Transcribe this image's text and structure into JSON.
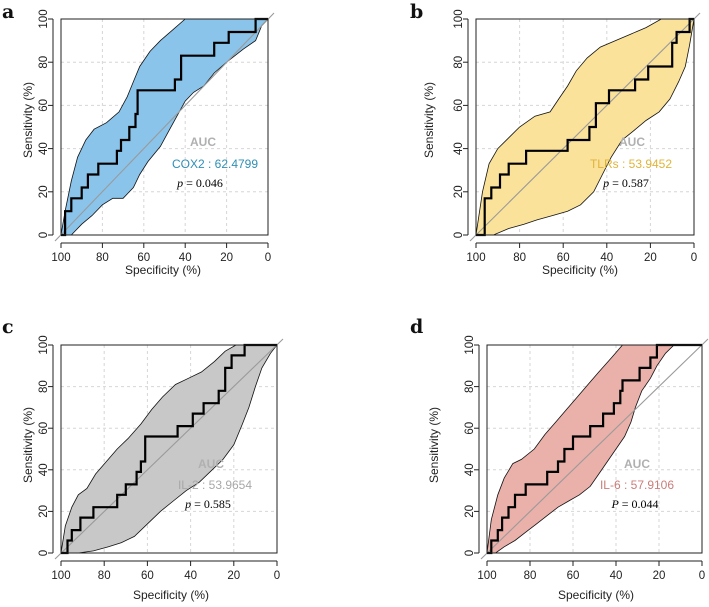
{
  "chart_data": [
    {
      "panel": "a",
      "type": "line",
      "subtype": "roc",
      "xlabel": "Specificity (%)",
      "ylabel": "Sensitivity (%)",
      "xlim": [
        100,
        0
      ],
      "ylim": [
        0,
        100
      ],
      "xticks": [
        "100",
        "80",
        "60",
        "40",
        "20",
        "0"
      ],
      "yticks": [
        "0",
        "20",
        "40",
        "60",
        "80",
        "100"
      ],
      "grid": true,
      "auc_title": "AUC",
      "auc_label": "COX2 : 62.4799",
      "p_prefix": "p",
      "p_rest": " = 0.046",
      "fill_color": "#8bc4ea",
      "label_color": "#2e8fb5",
      "roc": [
        [
          100,
          0
        ],
        [
          98,
          0
        ],
        [
          98,
          11
        ],
        [
          95,
          11
        ],
        [
          95,
          17
        ],
        [
          90,
          17
        ],
        [
          90,
          22
        ],
        [
          87,
          22
        ],
        [
          87,
          28
        ],
        [
          82,
          28
        ],
        [
          82,
          33
        ],
        [
          73,
          33
        ],
        [
          73,
          39
        ],
        [
          71,
          39
        ],
        [
          71,
          44
        ],
        [
          67,
          44
        ],
        [
          67,
          50
        ],
        [
          64,
          50
        ],
        [
          64,
          56
        ],
        [
          63,
          56
        ],
        [
          63,
          67
        ],
        [
          45,
          67
        ],
        [
          45,
          72
        ],
        [
          42,
          72
        ],
        [
          42,
          83
        ],
        [
          26,
          83
        ],
        [
          26,
          89
        ],
        [
          19,
          89
        ],
        [
          19,
          94
        ],
        [
          6,
          94
        ],
        [
          6,
          100
        ],
        [
          0,
          100
        ]
      ],
      "ci_upper": [
        [
          100,
          0
        ],
        [
          98,
          11
        ],
        [
          95,
          25
        ],
        [
          92,
          36
        ],
        [
          88,
          44
        ],
        [
          84,
          49
        ],
        [
          78,
          52
        ],
        [
          72,
          57
        ],
        [
          68,
          64
        ],
        [
          65,
          71
        ],
        [
          62,
          78
        ],
        [
          57,
          85
        ],
        [
          52,
          90
        ],
        [
          46,
          95
        ],
        [
          40,
          100
        ],
        [
          0,
          100
        ]
      ],
      "ci_lower": [
        [
          100,
          0
        ],
        [
          95,
          0
        ],
        [
          90,
          5
        ],
        [
          85,
          9
        ],
        [
          80,
          14
        ],
        [
          75,
          17
        ],
        [
          70,
          17
        ],
        [
          65,
          22
        ],
        [
          62,
          28
        ],
        [
          58,
          34
        ],
        [
          52,
          41
        ],
        [
          48,
          48
        ],
        [
          44,
          55
        ],
        [
          40,
          62
        ],
        [
          36,
          66
        ],
        [
          31,
          69
        ],
        [
          26,
          75
        ],
        [
          20,
          80
        ],
        [
          12,
          86
        ],
        [
          6,
          90
        ],
        [
          3,
          97
        ],
        [
          0,
          100
        ]
      ]
    },
    {
      "panel": "b",
      "type": "line",
      "subtype": "roc",
      "xlabel": "Specificity (%)",
      "ylabel": "Sensitivity (%)",
      "xlim": [
        100,
        0
      ],
      "ylim": [
        0,
        100
      ],
      "xticks": [
        "100",
        "80",
        "60",
        "40",
        "20",
        "0"
      ],
      "yticks": [
        "0",
        "20",
        "40",
        "60",
        "80",
        "100"
      ],
      "grid": true,
      "auc_title": "AUC",
      "auc_label": "TLRs : 53.9452",
      "p_prefix": "p",
      "p_rest": " = 0.587",
      "fill_color": "#fbe29b",
      "label_color": "#e0b43a",
      "roc": [
        [
          100,
          0
        ],
        [
          96,
          0
        ],
        [
          96,
          17
        ],
        [
          93,
          17
        ],
        [
          93,
          22
        ],
        [
          89,
          22
        ],
        [
          89,
          28
        ],
        [
          85,
          28
        ],
        [
          85,
          33
        ],
        [
          77,
          33
        ],
        [
          77,
          39
        ],
        [
          58,
          39
        ],
        [
          58,
          44
        ],
        [
          48,
          44
        ],
        [
          48,
          50
        ],
        [
          45,
          50
        ],
        [
          45,
          61
        ],
        [
          39,
          61
        ],
        [
          39,
          67
        ],
        [
          27,
          67
        ],
        [
          27,
          72
        ],
        [
          21,
          72
        ],
        [
          21,
          78
        ],
        [
          10,
          78
        ],
        [
          10,
          89
        ],
        [
          8,
          89
        ],
        [
          8,
          94
        ],
        [
          2,
          94
        ],
        [
          2,
          100
        ],
        [
          0,
          100
        ]
      ],
      "ci_upper": [
        [
          100,
          0
        ],
        [
          97,
          20
        ],
        [
          94,
          33
        ],
        [
          90,
          40
        ],
        [
          85,
          45
        ],
        [
          80,
          50
        ],
        [
          73,
          55
        ],
        [
          66,
          57
        ],
        [
          62,
          63
        ],
        [
          58,
          69
        ],
        [
          54,
          76
        ],
        [
          49,
          82
        ],
        [
          43,
          87
        ],
        [
          36,
          90
        ],
        [
          29,
          93
        ],
        [
          22,
          96
        ],
        [
          15,
          100
        ],
        [
          0,
          100
        ]
      ],
      "ci_lower": [
        [
          100,
          0
        ],
        [
          92,
          0
        ],
        [
          85,
          3
        ],
        [
          78,
          5
        ],
        [
          72,
          7
        ],
        [
          65,
          9
        ],
        [
          58,
          11
        ],
        [
          52,
          14
        ],
        [
          46,
          20
        ],
        [
          42,
          28
        ],
        [
          38,
          36
        ],
        [
          33,
          44
        ],
        [
          28,
          48
        ],
        [
          22,
          53
        ],
        [
          16,
          57
        ],
        [
          11,
          63
        ],
        [
          7,
          71
        ],
        [
          4,
          78
        ],
        [
          2,
          88
        ],
        [
          0,
          100
        ]
      ]
    },
    {
      "panel": "c",
      "type": "line",
      "subtype": "roc",
      "xlabel": "Specificity (%)",
      "ylabel": "Sensitivity (%)",
      "xlim": [
        100,
        0
      ],
      "ylim": [
        0,
        100
      ],
      "xticks": [
        "100",
        "80",
        "60",
        "40",
        "20",
        "0"
      ],
      "yticks": [
        "0",
        "20",
        "40",
        "60",
        "80",
        "100"
      ],
      "grid": true,
      "auc_title": "AUC",
      "auc_label": "IL-2 : 53.9654",
      "p_prefix": "p",
      "p_rest": " = 0.585",
      "fill_color": "#c8c8c8",
      "label_color": "#a8a8a8",
      "roc": [
        [
          100,
          0
        ],
        [
          97,
          0
        ],
        [
          97,
          6
        ],
        [
          95,
          6
        ],
        [
          95,
          11
        ],
        [
          91,
          11
        ],
        [
          91,
          17
        ],
        [
          85,
          17
        ],
        [
          85,
          22
        ],
        [
          74,
          22
        ],
        [
          74,
          28
        ],
        [
          70,
          28
        ],
        [
          70,
          33
        ],
        [
          65,
          33
        ],
        [
          65,
          39
        ],
        [
          63,
          39
        ],
        [
          63,
          44
        ],
        [
          61,
          44
        ],
        [
          61,
          56
        ],
        [
          46,
          56
        ],
        [
          46,
          61
        ],
        [
          39,
          61
        ],
        [
          39,
          67
        ],
        [
          34,
          67
        ],
        [
          34,
          72
        ],
        [
          27,
          72
        ],
        [
          27,
          78
        ],
        [
          24,
          78
        ],
        [
          24,
          89
        ],
        [
          21,
          89
        ],
        [
          21,
          95
        ],
        [
          15,
          95
        ],
        [
          15,
          100
        ],
        [
          0,
          100
        ]
      ],
      "ci_upper": [
        [
          100,
          0
        ],
        [
          98,
          13
        ],
        [
          95,
          22
        ],
        [
          92,
          28
        ],
        [
          88,
          31
        ],
        [
          84,
          38
        ],
        [
          79,
          44
        ],
        [
          74,
          50
        ],
        [
          69,
          55
        ],
        [
          63,
          62
        ],
        [
          58,
          69
        ],
        [
          53,
          75
        ],
        [
          47,
          81
        ],
        [
          41,
          84
        ],
        [
          35,
          87
        ],
        [
          29,
          92
        ],
        [
          24,
          97
        ],
        [
          19,
          100
        ],
        [
          0,
          100
        ]
      ],
      "ci_lower": [
        [
          100,
          0
        ],
        [
          92,
          0
        ],
        [
          85,
          1
        ],
        [
          78,
          3
        ],
        [
          72,
          5
        ],
        [
          66,
          8
        ],
        [
          60,
          14
        ],
        [
          54,
          20
        ],
        [
          48,
          25
        ],
        [
          42,
          30
        ],
        [
          36,
          34
        ],
        [
          30,
          40
        ],
        [
          25,
          45
        ],
        [
          20,
          52
        ],
        [
          16,
          62
        ],
        [
          13,
          70
        ],
        [
          10,
          80
        ],
        [
          7,
          89
        ],
        [
          3,
          96
        ],
        [
          0,
          100
        ]
      ]
    },
    {
      "panel": "d",
      "type": "line",
      "subtype": "roc",
      "xlabel": "Specificity (%)",
      "ylabel": "Sensitivity (%)",
      "xlim": [
        100,
        0
      ],
      "ylim": [
        0,
        100
      ],
      "xticks": [
        "100",
        "80",
        "60",
        "40",
        "20",
        "0"
      ],
      "yticks": [
        "0",
        "20",
        "40",
        "60",
        "80",
        "100"
      ],
      "grid": true,
      "auc_title": "AUC",
      "auc_label": "IL-6 : 57.9106",
      "p_prefix": "P",
      "p_rest": " = 0.044",
      "fill_color": "#eab0aa",
      "label_color": "#c87e7a",
      "roc": [
        [
          100,
          0
        ],
        [
          98,
          0
        ],
        [
          98,
          6
        ],
        [
          95,
          6
        ],
        [
          95,
          11
        ],
        [
          93,
          11
        ],
        [
          93,
          17
        ],
        [
          90,
          17
        ],
        [
          90,
          22
        ],
        [
          87,
          22
        ],
        [
          87,
          28
        ],
        [
          82,
          28
        ],
        [
          82,
          33
        ],
        [
          72,
          33
        ],
        [
          72,
          39
        ],
        [
          67,
          39
        ],
        [
          67,
          44
        ],
        [
          64,
          44
        ],
        [
          64,
          50
        ],
        [
          60,
          50
        ],
        [
          60,
          56
        ],
        [
          52,
          56
        ],
        [
          52,
          61
        ],
        [
          46,
          61
        ],
        [
          46,
          67
        ],
        [
          41,
          67
        ],
        [
          41,
          72
        ],
        [
          38,
          72
        ],
        [
          38,
          78
        ],
        [
          37,
          78
        ],
        [
          37,
          83
        ],
        [
          29,
          83
        ],
        [
          29,
          89
        ],
        [
          24,
          89
        ],
        [
          24,
          94
        ],
        [
          21,
          94
        ],
        [
          21,
          100
        ],
        [
          0,
          100
        ]
      ],
      "ci_upper": [
        [
          100,
          0
        ],
        [
          98,
          16
        ],
        [
          95,
          28
        ],
        [
          92,
          36
        ],
        [
          88,
          43
        ],
        [
          84,
          45
        ],
        [
          78,
          50
        ],
        [
          73,
          57
        ],
        [
          68,
          63
        ],
        [
          63,
          69
        ],
        [
          58,
          75
        ],
        [
          53,
          81
        ],
        [
          48,
          87
        ],
        [
          42,
          94
        ],
        [
          37,
          100
        ],
        [
          0,
          100
        ]
      ],
      "ci_lower": [
        [
          100,
          0
        ],
        [
          96,
          0
        ],
        [
          92,
          3
        ],
        [
          87,
          6
        ],
        [
          82,
          10
        ],
        [
          77,
          14
        ],
        [
          72,
          18
        ],
        [
          67,
          22
        ],
        [
          62,
          25
        ],
        [
          57,
          28
        ],
        [
          52,
          32
        ],
        [
          48,
          38
        ],
        [
          44,
          44
        ],
        [
          40,
          50
        ],
        [
          36,
          56
        ],
        [
          33,
          63
        ],
        [
          31,
          70
        ],
        [
          28,
          78
        ],
        [
          24,
          84
        ],
        [
          21,
          90
        ],
        [
          17,
          96
        ],
        [
          13,
          100
        ],
        [
          0,
          100
        ]
      ]
    }
  ]
}
